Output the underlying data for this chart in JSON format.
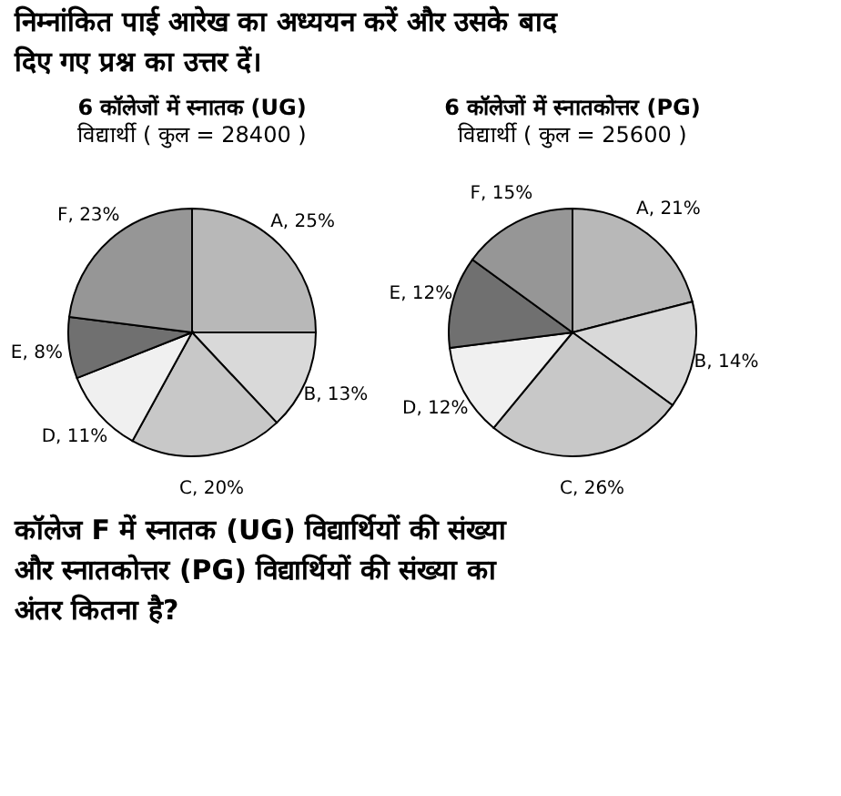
{
  "chart_data": [
    {
      "type": "pie",
      "title": "6 कॉलेजों में स्नातक (UG)",
      "subtitle": "विद्यार्थी ( कुल = 28400 )",
      "annotations": [
        "निम्नांकित पाई आरेख का अध्ययन करें और उसके बाद दिए गए प्रश्न का उत्तर दें।"
      ],
      "categories": [
        "A",
        "B",
        "C",
        "D",
        "E",
        "F"
      ],
      "values": [
        25,
        13,
        20,
        11,
        8,
        23
      ],
      "colors": [
        "#b8b8b8",
        "#d9d9d9",
        "#c8c8c8",
        "#f0f0f0",
        "#707070",
        "#969696"
      ],
      "value_labels": [
        "25%",
        "13%",
        "20%",
        "11%",
        "8%",
        "23%"
      ]
    },
    {
      "type": "pie",
      "title": "6 कॉलेजों में स्नातकोत्तर (PG)",
      "subtitle": "विद्यार्थी ( कुल = 25600 )",
      "annotations": [
        "कॉलेज F में स्नातक (UG) विद्यार्थियों की संख्या और स्नातकोत्तर (PG) विद्यार्थियों की संख्या का अंतर कितना है?"
      ],
      "categories": [
        "A",
        "B",
        "C",
        "D",
        "E",
        "F"
      ],
      "values": [
        21,
        14,
        26,
        12,
        12,
        15
      ],
      "colors": [
        "#b8b8b8",
        "#d9d9d9",
        "#c8c8c8",
        "#f0f0f0",
        "#707070",
        "#969696"
      ],
      "value_labels": [
        "21%",
        "14%",
        "26%",
        "12%",
        "12%",
        "15%"
      ]
    }
  ]
}
